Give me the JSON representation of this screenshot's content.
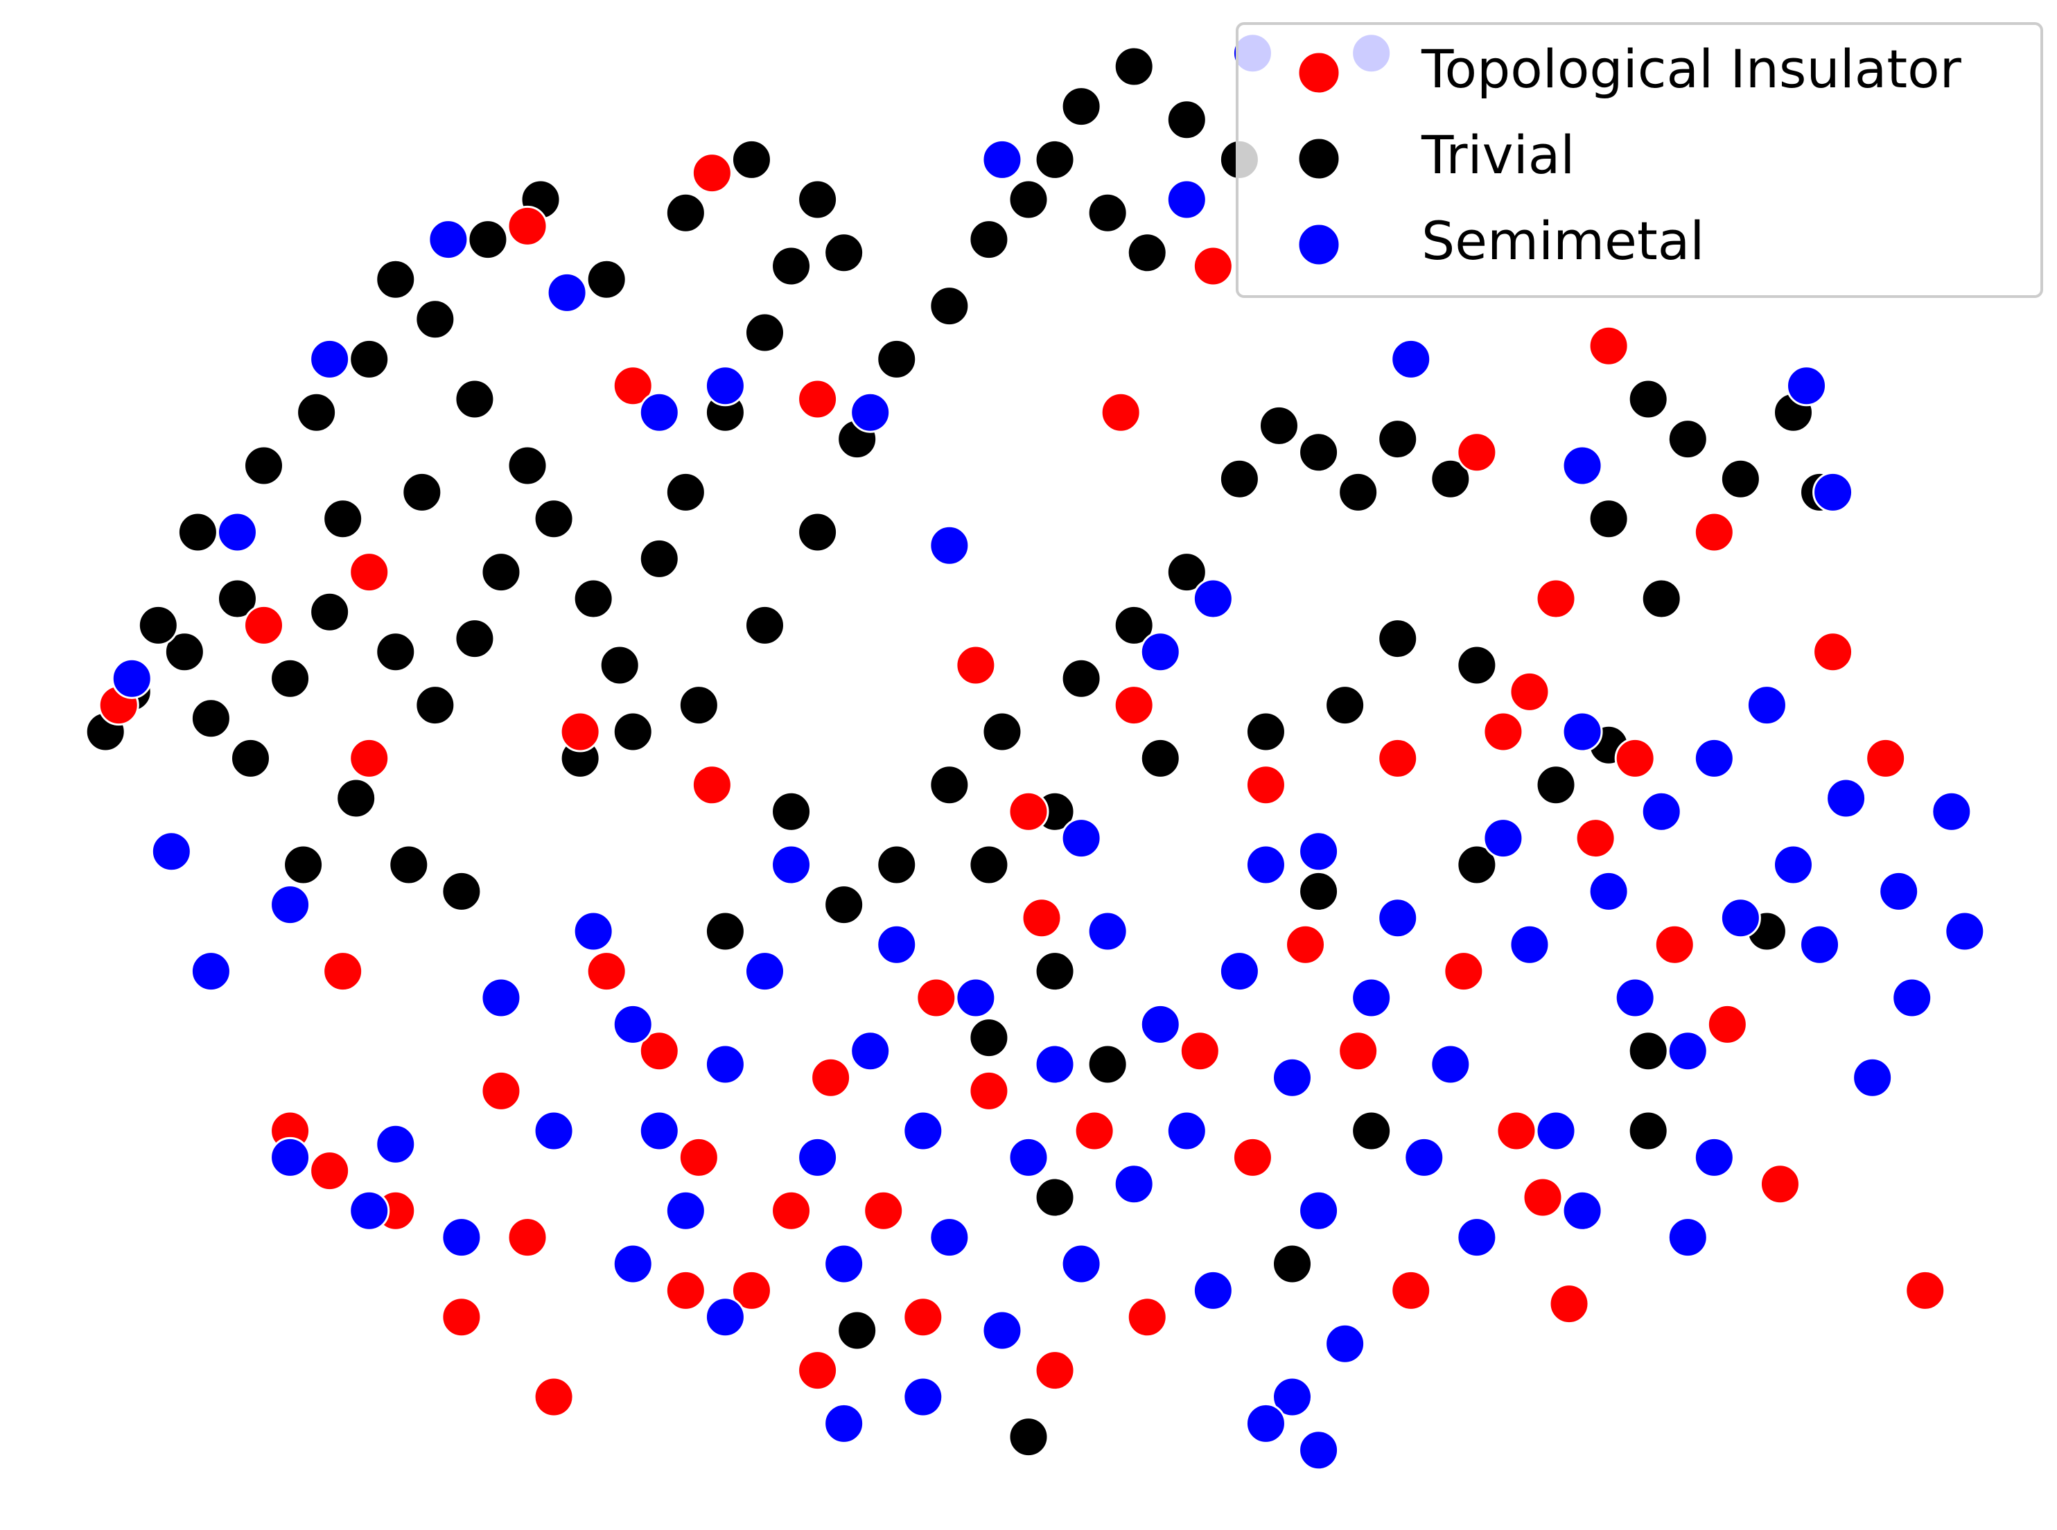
{
  "chart_data": {
    "type": "scatter",
    "xlim": [
      0,
      156
    ],
    "ylim": [
      0,
      115
    ],
    "legend": "upper right",
    "series": [
      {
        "name": "Trivial",
        "color": "#000000",
        "x": [
          8,
          10,
          14,
          16,
          19,
          22,
          25,
          28,
          30,
          33,
          36,
          38,
          15,
          20,
          24,
          28,
          30,
          33,
          36,
          40,
          42,
          45,
          47,
          50,
          52,
          55,
          58,
          60,
          62,
          64,
          57,
          52,
          46,
          41,
          37,
          32,
          26,
          18,
          12,
          27,
          31,
          35,
          23,
          44,
          48,
          53,
          58,
          62,
          65,
          68,
          72,
          75,
          78,
          80,
          84,
          87,
          82,
          86,
          90,
          94,
          97,
          100,
          103,
          106,
          110,
          94,
          90,
          86,
          82,
          76,
          72,
          68,
          64,
          75,
          80,
          88,
          96,
          102,
          106,
          112,
          118,
          122,
          125,
          128,
          132,
          136,
          138,
          122,
          126,
          75,
          84,
          80,
          60,
          55,
          100,
          112,
          125,
          134,
          104,
          98,
          80,
          65,
          78,
          125
        ],
        "y": [
          60,
          63,
          66,
          61,
          58,
          64,
          69,
          72,
          66,
          62,
          67,
          72,
          75,
          80,
          84,
          88,
          94,
          91,
          85,
          80,
          76,
          70,
          65,
          73,
          78,
          84,
          90,
          95,
          100,
          96,
          103,
          99,
          94,
          100,
          97,
          78,
          76,
          70,
          68,
          55,
          50,
          48,
          50,
          58,
          60,
          62,
          68,
          75,
          82,
          88,
          92,
          97,
          100,
          103,
          99,
          96,
          107,
          110,
          106,
          103,
          83,
          81,
          78,
          82,
          79,
          79,
          72,
          68,
          64,
          60,
          56,
          50,
          47,
          50,
          54,
          58,
          60,
          62,
          67,
          65,
          56,
          59,
          85,
          82,
          79,
          84,
          78,
          76,
          70,
          37,
          35,
          42,
          54,
          45,
          48,
          50,
          36,
          45,
          30,
          20,
          25,
          15,
          7,
          30
        ]
      },
      {
        "name": "Topological Insulator",
        "color": "#ff0000",
        "x": [
          9,
          20,
          28,
          40,
          48,
          54,
          62,
          85,
          92,
          112,
          122,
          130,
          118,
          116,
          121,
          114,
          106,
          96,
          86,
          78,
          74,
          54,
          44,
          28,
          26,
          22,
          25,
          30,
          38,
          35,
          40,
          46,
          50,
          53,
          57,
          60,
          63,
          67,
          71,
          75,
          79,
          83,
          87,
          91,
          95,
          99,
          103,
          107,
          111,
          115,
          119,
          124,
          127,
          131,
          135,
          139,
          143,
          146,
          117,
          80,
          70,
          62,
          52,
          42
        ],
        "y": [
          62,
          68,
          72,
          98,
          86,
          102,
          85,
          84,
          95,
          81,
          89,
          75,
          70,
          63,
          52,
          60,
          58,
          56,
          62,
          54,
          65,
          56,
          60,
          58,
          42,
          30,
          27,
          24,
          33,
          16,
          22,
          42,
          36,
          28,
          18,
          24,
          34,
          24,
          40,
          33,
          46,
          30,
          16,
          36,
          28,
          44,
          36,
          18,
          42,
          30,
          17,
          58,
          44,
          38,
          26,
          66,
          58,
          18,
          25,
          12,
          16,
          12,
          18,
          10
        ]
      },
      {
        "name": "Semimetal",
        "color": "#0000ff",
        "x": [
          45,
          48,
          50,
          52,
          55,
          58,
          60,
          62,
          64,
          66,
          68,
          70,
          72,
          74,
          76,
          78,
          80,
          82,
          84,
          86,
          88,
          90,
          92,
          94,
          96,
          98,
          100,
          102,
          104,
          106,
          108,
          110,
          112,
          114,
          116,
          118,
          120,
          122,
          124,
          126,
          128,
          130,
          132,
          134,
          136,
          138,
          140,
          142,
          144,
          148,
          149,
          145,
          130,
          128,
          120,
          98,
          100,
          96,
          64,
          70,
          55,
          48,
          42,
          38,
          30,
          22,
          28,
          35,
          16,
          22,
          13,
          10,
          18,
          25,
          34,
          43,
          50,
          55,
          66,
          72,
          76,
          90,
          95,
          104,
          107,
          137,
          139,
          120,
          88,
          92,
          82,
          100
        ],
        "y": [
          45,
          38,
          30,
          24,
          35,
          42,
          50,
          28,
          20,
          36,
          44,
          30,
          22,
          40,
          15,
          28,
          35,
          20,
          45,
          26,
          38,
          30,
          18,
          42,
          50,
          34,
          24,
          14,
          40,
          46,
          28,
          35,
          22,
          52,
          44,
          30,
          60,
          48,
          40,
          54,
          36,
          58,
          46,
          62,
          50,
          44,
          55,
          34,
          48,
          54,
          45,
          40,
          28,
          22,
          24,
          10,
          6,
          8,
          8,
          10,
          16,
          20,
          30,
          40,
          29,
          28,
          24,
          22,
          42,
          47,
          51,
          64,
          75,
          88,
          97,
          93,
          84,
          86,
          84,
          74,
          103,
          100,
          111,
          111,
          88,
          86,
          78,
          80,
          66,
          70,
          52,
          51
        ]
      }
    ]
  }
}
